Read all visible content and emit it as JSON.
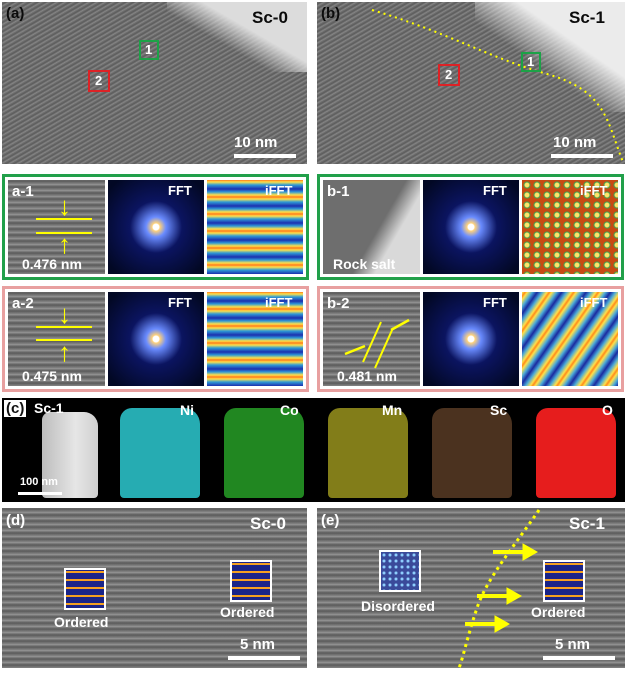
{
  "panel_a": {
    "letter": "(a)",
    "sample": "Sc-0",
    "box1": "1",
    "box2": "2",
    "scalebar": "10 nm"
  },
  "panel_b": {
    "letter": "(b)",
    "sample": "Sc-1",
    "box1": "1",
    "box2": "2",
    "scalebar": "10 nm"
  },
  "panel_a1": {
    "label": "a-1",
    "spacing": "0.476 nm",
    "fft": "FFT",
    "ifft": "iFFT"
  },
  "panel_a2": {
    "label": "a-2",
    "spacing": "0.475 nm",
    "fft": "FFT",
    "ifft": "iFFT"
  },
  "panel_b1": {
    "label": "b-1",
    "phase": "Rock salt",
    "fft": "FFT",
    "ifft": "iFFT"
  },
  "panel_b2": {
    "label": "b-2",
    "spacing": "0.481 nm",
    "fft": "FFT",
    "ifft": "iFFT"
  },
  "panel_c": {
    "letter": "(c)",
    "sample": "Sc-1",
    "scalebar": "100 nm",
    "elements": [
      "Ni",
      "Co",
      "Mn",
      "Sc",
      "O"
    ],
    "element_colors": [
      "#2fd7de",
      "#2fc12f",
      "#d9d02a",
      "#d8905a",
      "#ff2020"
    ]
  },
  "panel_d": {
    "letter": "(d)",
    "sample": "Sc-0",
    "left": "Ordered",
    "right": "Ordered",
    "scalebar": "5 nm"
  },
  "panel_e": {
    "letter": "(e)",
    "sample": "Sc-1",
    "left": "Disordered",
    "right": "Ordered",
    "scalebar": "5 nm"
  },
  "colors": {
    "green_box": "#21a04a",
    "red_box": "#d9262a",
    "pink_frame": "#e8a0a0",
    "highlight": "#ffff00"
  }
}
